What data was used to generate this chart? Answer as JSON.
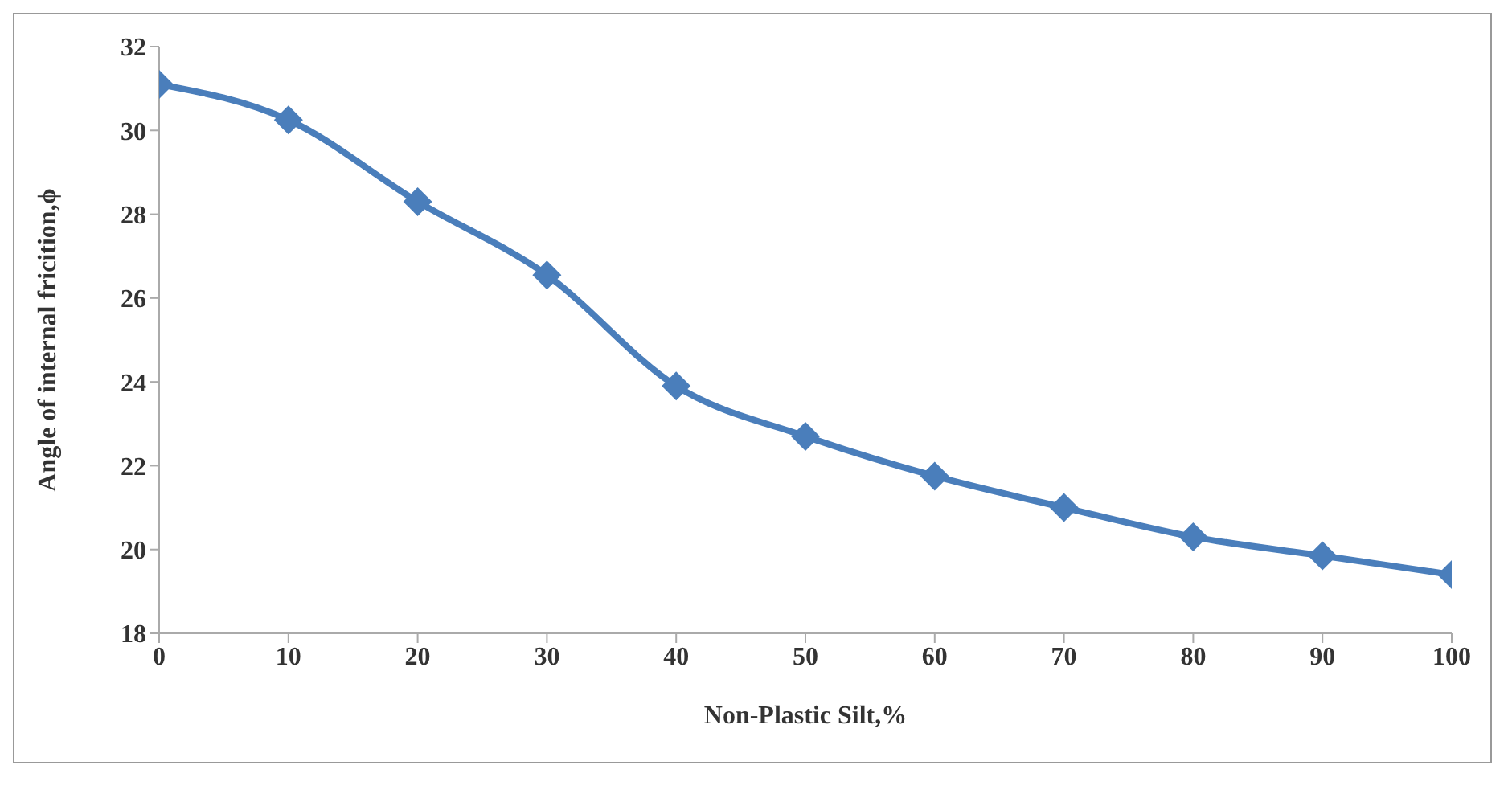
{
  "chart_data": {
    "type": "line",
    "xlabel": "Non-Plastic Silt,%",
    "ylabel": "Angle of internal fricition,ϕ",
    "x": [
      0,
      10,
      20,
      30,
      40,
      50,
      60,
      70,
      80,
      90,
      100
    ],
    "series": [
      {
        "color": "#4a7ebb",
        "values": [
          31.1,
          30.25,
          28.3,
          26.55,
          23.9,
          22.7,
          21.75,
          21.0,
          20.3,
          19.85,
          19.4
        ]
      }
    ],
    "xlim": [
      0,
      100
    ],
    "xticks": [
      0,
      10,
      20,
      30,
      40,
      50,
      60,
      70,
      80,
      90,
      100
    ],
    "ylim": [
      18,
      32
    ],
    "yticks": [
      18,
      20,
      22,
      24,
      26,
      28,
      30,
      32
    ],
    "grid": false,
    "legend": false,
    "marker": "diamond",
    "line_style": "solid"
  }
}
